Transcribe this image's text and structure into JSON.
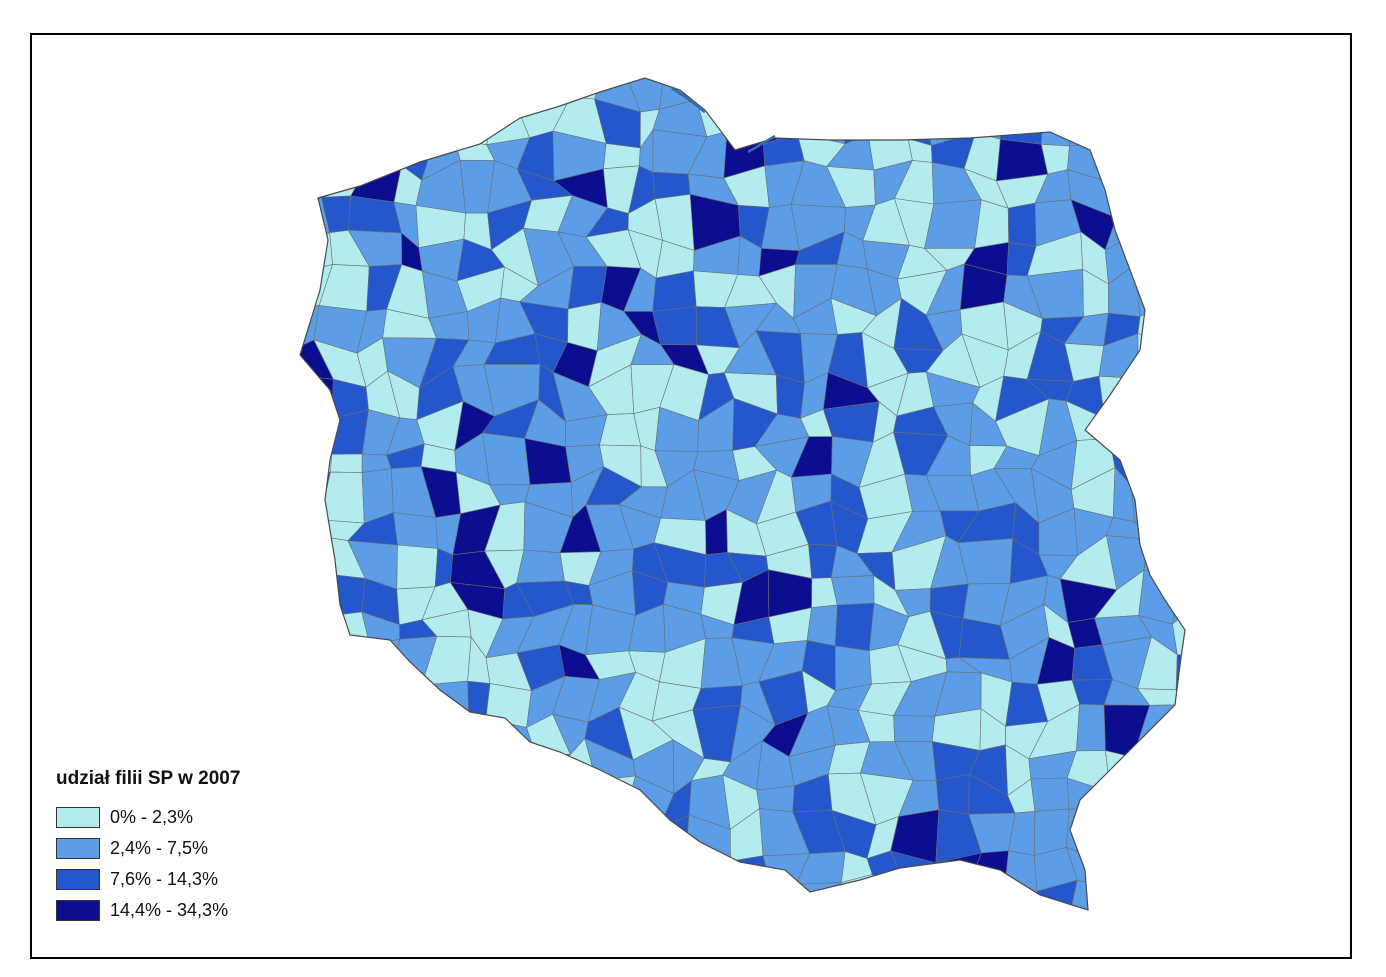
{
  "legend": {
    "title": "udział filii SP w 2007",
    "classes": [
      {
        "label": "0% - 2,3%",
        "color": "#b3ecef"
      },
      {
        "label": "2,4% - 7,5%",
        "color": "#5b9de6"
      },
      {
        "label": "7,6% - 14,3%",
        "color": "#2456cc"
      },
      {
        "label": "14,4% - 34,3%",
        "color": "#0b0f8f"
      }
    ]
  }
}
